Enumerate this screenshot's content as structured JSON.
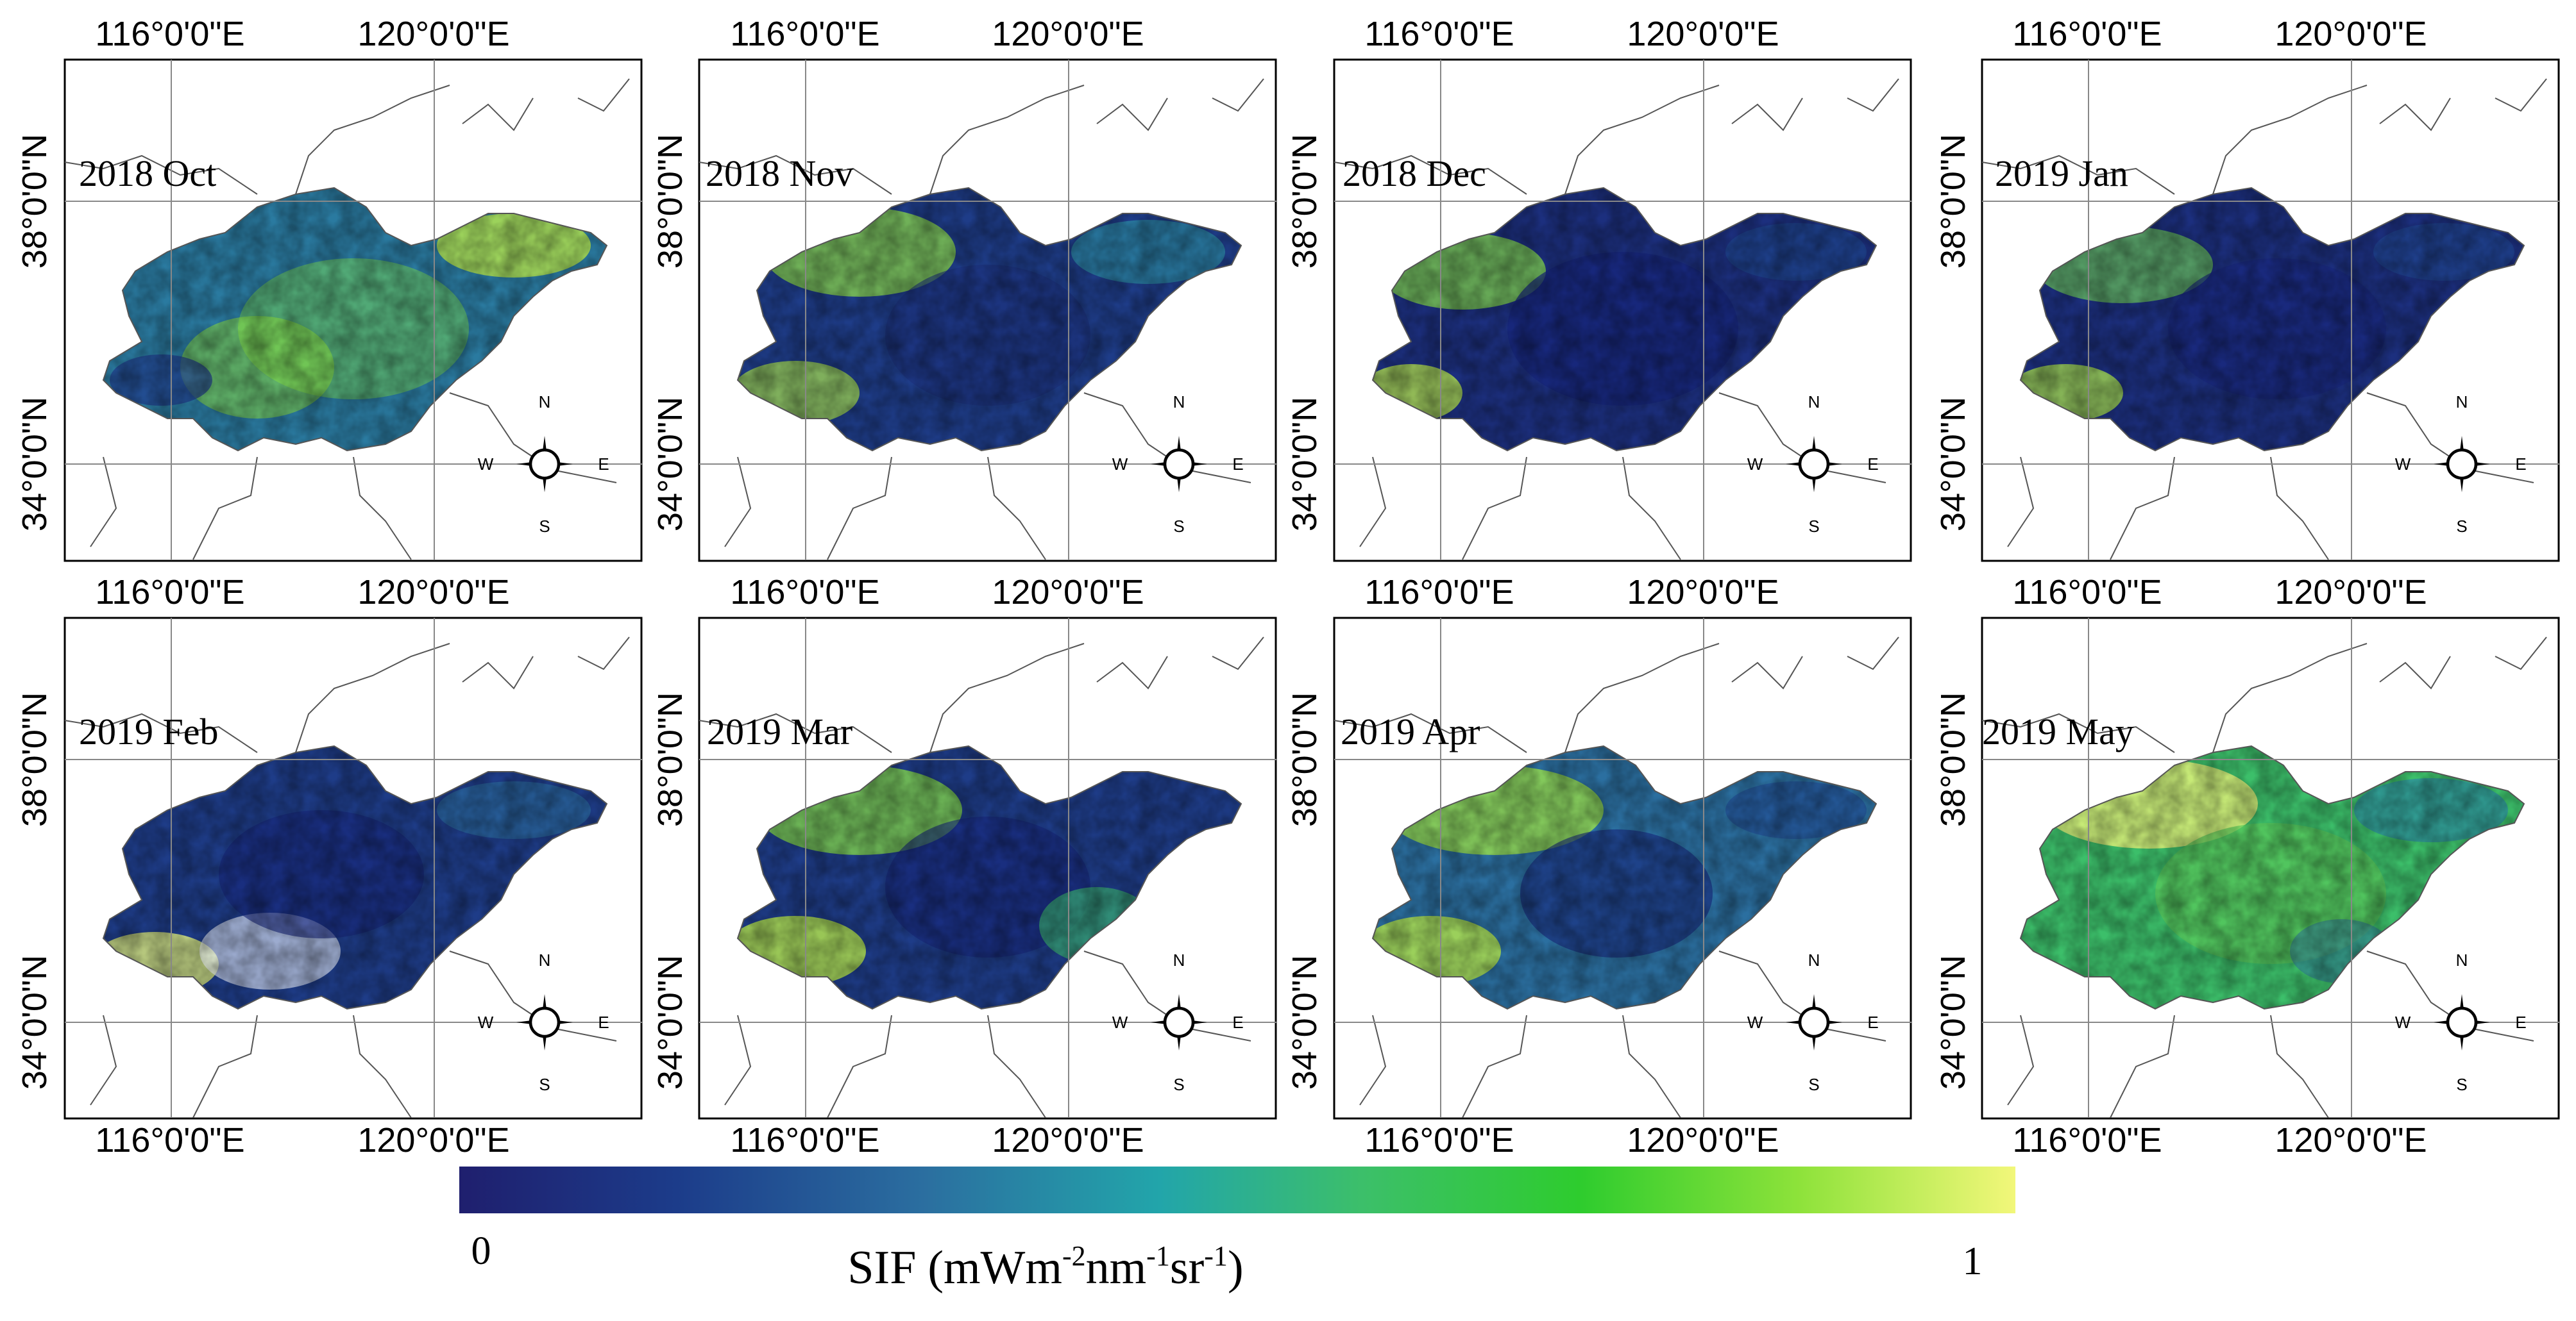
{
  "panels": [
    {
      "label": "2018 Oct"
    },
    {
      "label": "2018 Nov"
    },
    {
      "label": "2018 Dec"
    },
    {
      "label": "2019 Jan"
    },
    {
      "label": "2019 Feb"
    },
    {
      "label": "2019 Mar"
    },
    {
      "label": "2019 Apr"
    },
    {
      "label": "2019 May"
    }
  ],
  "axes": {
    "lon_ticks": [
      "116°0'0\"E",
      "120°0'0\"E"
    ],
    "lat_ticks": [
      "38°0'0\"N",
      "34°0'0\"N"
    ],
    "lon_values": [
      116,
      120
    ],
    "lat_values": [
      38,
      34
    ]
  },
  "compass": {
    "n": "N",
    "s": "S",
    "e": "E",
    "w": "W"
  },
  "colorbar": {
    "min_label": "0",
    "max_label": "1",
    "title": "SIF",
    "unit_prefix": "(mWm",
    "exp1": "-2",
    "mid1": "nm",
    "exp2": "-1",
    "mid2": "sr",
    "exp3": "-1",
    "unit_suffix": ")",
    "colors": [
      "#1f1f6e",
      "#1c3c8a",
      "#2b6fa0",
      "#22a5aa",
      "#3cbf6a",
      "#2ecc2e",
      "#8de23a",
      "#f2f77a"
    ]
  }
}
